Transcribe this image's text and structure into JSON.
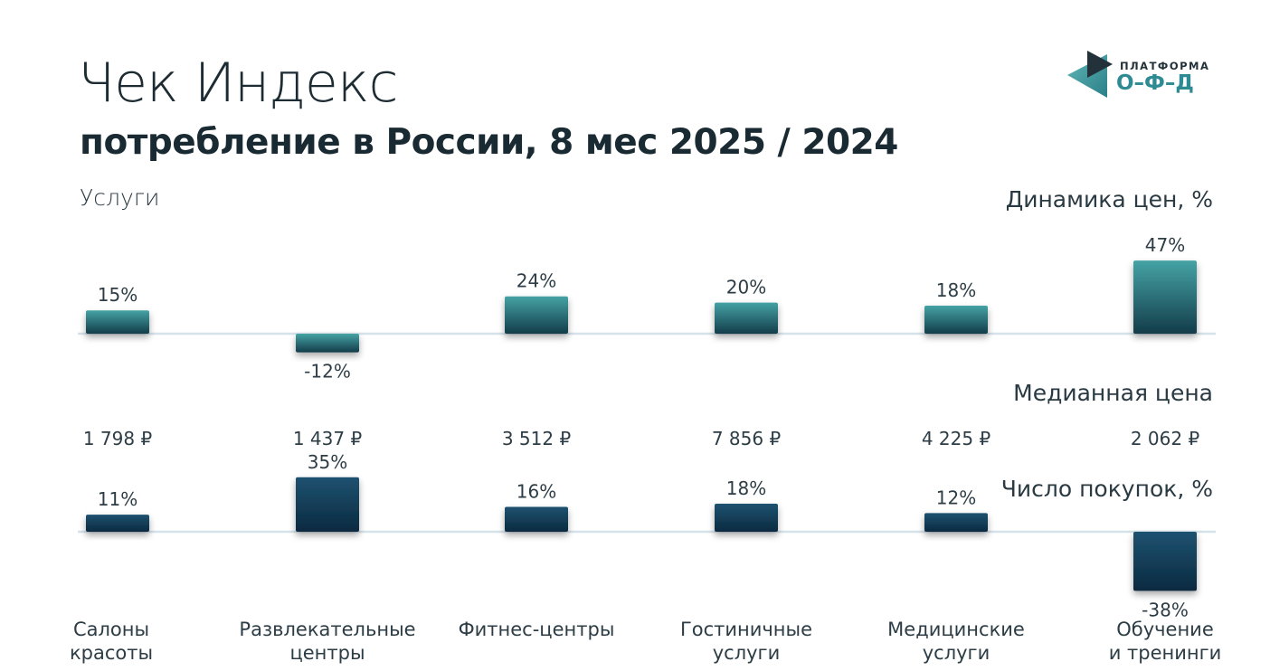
{
  "header": {
    "title": "Чек Индекс",
    "subtitle": "потребление в России, 8 мес 2025 / 2024",
    "section": "Услуги"
  },
  "logo": {
    "top_text": "ПЛАТФОРМА",
    "bottom_text": "О–Ф–Д",
    "colors": {
      "dark": "#22313a",
      "teal": "#2e8b93"
    }
  },
  "chart_data": {
    "type": "bar",
    "categories": [
      [
        "Салоны",
        "красоты"
      ],
      [
        "Развлекательные",
        "центры"
      ],
      [
        "Фитнес-центры"
      ],
      [
        "Гостиничные",
        "услуги"
      ],
      [
        "Медицинские",
        "услуги"
      ],
      [
        "Обучение",
        "и тренинги"
      ]
    ],
    "series": [
      {
        "name": "Динамика цен, %",
        "values": [
          15,
          -12,
          24,
          20,
          18,
          47
        ],
        "labels": [
          "15%",
          "-12%",
          "24%",
          "20%",
          "18%",
          "47%"
        ],
        "color_top": "#3a9a9e",
        "color_bottom": "#123a48"
      },
      {
        "name": "Число покупок, %",
        "values": [
          11,
          35,
          16,
          18,
          12,
          -38
        ],
        "labels": [
          "11%",
          "35%",
          "16%",
          "18%",
          "12%",
          "-38%"
        ],
        "color_top": "#1f4e6a",
        "color_bottom": "#08273d"
      }
    ],
    "median": {
      "name": "Медианная цена",
      "values": [
        1798,
        1437,
        3512,
        7856,
        4225,
        2062
      ],
      "labels": [
        "1 798 ₽",
        "1 437 ₽",
        "3 512 ₽",
        "7 856 ₽",
        "4 225 ₽",
        "2 062 ₽"
      ]
    }
  }
}
